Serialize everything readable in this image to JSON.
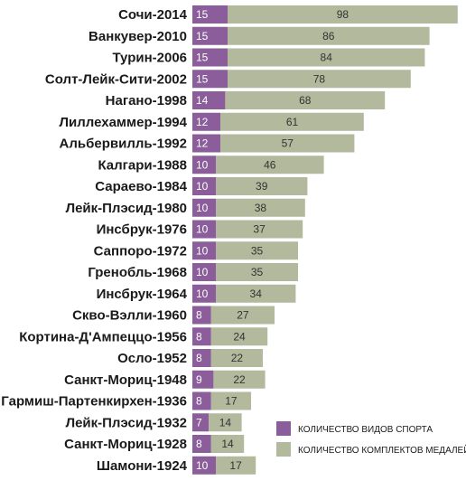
{
  "chart_data": {
    "type": "bar",
    "stacked": true,
    "orientation": "horizontal",
    "title": "",
    "xlabel": "",
    "ylabel": "",
    "categories": [
      "Сочи-2014",
      "Ванкувер-2010",
      "Турин-2006",
      "Солт-Лейк-Сити-2002",
      "Нагано-1998",
      "Лиллехаммер-1994",
      "Альбервилль-1992",
      "Калгари-1988",
      "Сараево-1984",
      "Лейк-Плэсид-1980",
      "Инсбрук-1976",
      "Саппоро-1972",
      "Гренобль-1968",
      "Инсбрук-1964",
      "Скво-Вэлли-1960",
      "Кортина-Д'Ампеццо-1956",
      "Осло-1952",
      "Санкт-Мориц-1948",
      "Гармиш-Партенкирхен-1936",
      "Лейк-Плэсид-1932",
      "Санкт-Мориц-1928",
      "Шамони-1924"
    ],
    "series": [
      {
        "name": "КОЛИЧЕСТВО ВИДОВ СПОРТА",
        "color": "#8b5e9b",
        "values": [
          15,
          15,
          15,
          15,
          14,
          12,
          12,
          10,
          10,
          10,
          10,
          10,
          10,
          10,
          8,
          8,
          8,
          9,
          8,
          7,
          8,
          10
        ]
      },
      {
        "name": "КОЛИЧЕСТВО КОМПЛЕКТОВ МЕДАЛЕЙ",
        "color": "#b2b99c",
        "values": [
          98,
          86,
          84,
          78,
          68,
          61,
          57,
          46,
          39,
          38,
          37,
          35,
          35,
          34,
          27,
          24,
          22,
          22,
          17,
          14,
          14,
          17
        ]
      }
    ],
    "legend_position": "bottom-right",
    "grid": false
  }
}
